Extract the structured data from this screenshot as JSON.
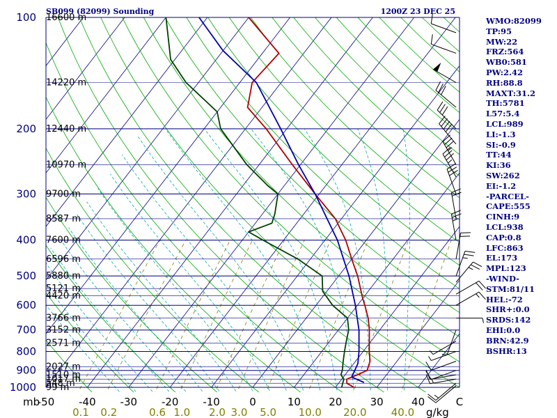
{
  "header": {
    "station": "SB099 (82099) Sounding",
    "time": "1200Z 23 DEC 25"
  },
  "colors": {
    "isobar": "#000080",
    "isotherm": "#000080",
    "dry_adiabat": "#00aa00",
    "moist_adiabat": "#00aaaa",
    "mixing_ratio": "#808000",
    "temperature": "#b00000",
    "dewpoint": "#004000",
    "parcel": "#0000b0",
    "wind_barb": "#000000",
    "index_text": "#000080"
  },
  "chart_data": {
    "type": "line",
    "diagram": "Skew-T log-P",
    "title": "SB099 (82099) Sounding",
    "pressure_unit": "mb",
    "mixing_ratio_unit": "g/kg",
    "ylim": [
      1000,
      100
    ],
    "xlim": [
      -50,
      50
    ],
    "pressure_ticks": [
      100,
      200,
      300,
      400,
      500,
      600,
      700,
      800,
      900,
      1000
    ],
    "temperature_ticks": [
      -50,
      -40,
      -30,
      -20,
      -10,
      0,
      10,
      20,
      30,
      40
    ],
    "mixing_ratio_ticks": [
      "0.1",
      "0.2",
      "0.6",
      "1.0",
      "2.0",
      "3.0",
      "5.0",
      "10.0",
      "20.0",
      "40.0"
    ],
    "height_labels": [
      {
        "p": 1000,
        "label": "99 m"
      },
      {
        "p": 975,
        "label": "548 m"
      },
      {
        "p": 950,
        "label": "1017 m"
      },
      {
        "p": 925,
        "label": "1510 m"
      },
      {
        "p": 880,
        "label": "2027 m"
      },
      {
        "p": 760,
        "label": "2571 m"
      },
      {
        "p": 700,
        "label": "3152 m"
      },
      {
        "p": 650,
        "label": "3766 m"
      },
      {
        "p": 565,
        "label": "4420 m"
      },
      {
        "p": 500,
        "label": "5121 m"
      },
      {
        "p": 500,
        "label": "5880 m"
      },
      {
        "p": 450,
        "label": "6596 m"
      },
      {
        "p": 400,
        "label": "7600 m"
      },
      {
        "p": 350,
        "label": "8587 m"
      },
      {
        "p": 300,
        "label": "9700 m"
      },
      {
        "p": 250,
        "label": "10970 m"
      },
      {
        "p": 200,
        "label": "12440 m"
      },
      {
        "p": 150,
        "label": "14220 m"
      },
      {
        "p": 100,
        "label": "16600 m"
      }
    ],
    "series": [
      {
        "key": "temperature",
        "points": [
          [
            1000,
            24.5
          ],
          [
            975,
            22.0
          ],
          [
            950,
            21.2
          ],
          [
            925,
            23.0
          ],
          [
            900,
            24.5
          ],
          [
            850,
            23.5
          ],
          [
            800,
            21.5
          ],
          [
            700,
            17.5
          ],
          [
            650,
            15.0
          ],
          [
            600,
            11.8
          ],
          [
            575,
            10.0
          ],
          [
            500,
            4.6
          ],
          [
            450,
            0.0
          ],
          [
            400,
            -5.0
          ],
          [
            350,
            -11.5
          ],
          [
            300,
            -21.0
          ],
          [
            250,
            -32.0
          ],
          [
            200,
            -45.0
          ],
          [
            175,
            -53.5
          ],
          [
            150,
            -57.0
          ],
          [
            125,
            -56.0
          ],
          [
            100,
            -70.0
          ]
        ]
      },
      {
        "key": "dewpoint",
        "points": [
          [
            1000,
            21.5
          ],
          [
            975,
            21.0
          ],
          [
            950,
            20.5
          ],
          [
            925,
            19.0
          ],
          [
            900,
            18.5
          ],
          [
            850,
            17.0
          ],
          [
            800,
            15.5
          ],
          [
            750,
            14.0
          ],
          [
            700,
            12.5
          ],
          [
            650,
            10.0
          ],
          [
            600,
            4.0
          ],
          [
            550,
            -1.0
          ],
          [
            500,
            -4.0
          ],
          [
            450,
            -13.0
          ],
          [
            400,
            -25.0
          ],
          [
            380,
            -30.0
          ],
          [
            360,
            -26.0
          ],
          [
            340,
            -27.0
          ],
          [
            300,
            -30.0
          ],
          [
            285,
            -34.0
          ],
          [
            250,
            -43.0
          ],
          [
            200,
            -56.0
          ],
          [
            180,
            -60.0
          ],
          [
            150,
            -73.0
          ],
          [
            130,
            -81.0
          ],
          [
            100,
            -90.0
          ]
        ]
      },
      {
        "key": "parcel",
        "points": [
          [
            970,
            26.0
          ],
          [
            938,
            22.0
          ],
          [
            900,
            21.5
          ],
          [
            863,
            21.0
          ],
          [
            800,
            19.0
          ],
          [
            700,
            15.0
          ],
          [
            600,
            9.5
          ],
          [
            500,
            2.5
          ],
          [
            400,
            -7.0
          ],
          [
            300,
            -21.0
          ],
          [
            250,
            -30.5
          ],
          [
            200,
            -41.5
          ],
          [
            150,
            -56.0
          ],
          [
            123,
            -70.0
          ],
          [
            100,
            -82.0
          ]
        ]
      }
    ],
    "wind_barbs": [
      {
        "p": 990,
        "dir": 230,
        "spd": 10
      },
      {
        "p": 975,
        "dir": 230,
        "spd": 15
      },
      {
        "p": 950,
        "dir": 260,
        "spd": 15
      },
      {
        "p": 925,
        "dir": 260,
        "spd": 10
      },
      {
        "p": 900,
        "dir": 250,
        "spd": 10
      },
      {
        "p": 850,
        "dir": 250,
        "spd": 10
      },
      {
        "p": 800,
        "dir": 250,
        "spd": 5
      },
      {
        "p": 750,
        "dir": 240,
        "spd": 5
      },
      {
        "p": 700,
        "dir": 200,
        "spd": 5
      },
      {
        "p": 650,
        "dir": 90,
        "spd": 5
      },
      {
        "p": 600,
        "dir": 60,
        "spd": 15
      },
      {
        "p": 560,
        "dir": 60,
        "spd": 20
      },
      {
        "p": 520,
        "dir": 40,
        "spd": 25
      },
      {
        "p": 500,
        "dir": 20,
        "spd": 25
      },
      {
        "p": 450,
        "dir": 10,
        "spd": 20
      },
      {
        "p": 400,
        "dir": 350,
        "spd": 25
      },
      {
        "p": 350,
        "dir": 350,
        "spd": 20
      },
      {
        "p": 300,
        "dir": 340,
        "spd": 30
      },
      {
        "p": 270,
        "dir": 330,
        "spd": 35
      },
      {
        "p": 250,
        "dir": 330,
        "spd": 35
      },
      {
        "p": 220,
        "dir": 320,
        "spd": 40
      },
      {
        "p": 200,
        "dir": 315,
        "spd": 30
      },
      {
        "p": 175,
        "dir": 310,
        "spd": 30
      },
      {
        "p": 150,
        "dir": 300,
        "spd": 50
      },
      {
        "p": 125,
        "dir": 290,
        "spd": 10
      },
      {
        "p": 110,
        "dir": 290,
        "spd": 10
      }
    ]
  },
  "indices": [
    "WMO:82099",
    "TP:95",
    "MW:22",
    "FRZ:564",
    "WB0:581",
    "PW:2.42",
    "RH:88.8",
    "MAXT:31.2",
    "TH:5781",
    "L57:5.4",
    "LCL:989",
    "LI:-1.3",
    "SI:-0.9",
    "TT:44",
    "KI:36",
    "SW:262",
    "EI:-1.2",
    "-PARCEL-",
    "CAPE:555",
    "CINH:9",
    "LCL:938",
    "CAP:0.8",
    "LFC:863",
    "EL:173",
    "MPL:123",
    "-WIND-",
    "STM:81/11",
    "HEL:-72",
    "SHR+:0.0",
    "SRDS:142",
    "EHI:0.0",
    "BRN:42.9",
    "BSHR:13"
  ]
}
